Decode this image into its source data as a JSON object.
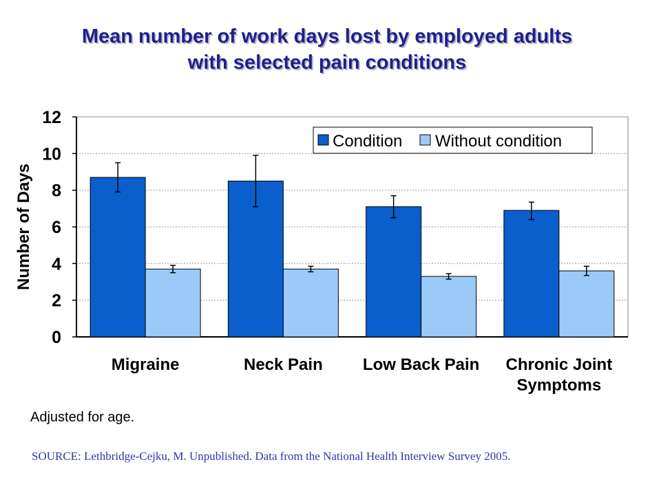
{
  "chart_data": {
    "type": "bar",
    "title_lines": [
      "Mean number of work days lost by employed adults",
      "with selected pain conditions"
    ],
    "ylabel": "Number of Days",
    "ylim": [
      0,
      12
    ],
    "yticks": [
      0,
      2,
      4,
      6,
      8,
      10,
      12
    ],
    "grid": true,
    "legend_position": "top-right",
    "categories": [
      [
        "Migraine"
      ],
      [
        "Neck Pain"
      ],
      [
        "Low Back Pain"
      ],
      [
        "Chronic Joint",
        "Symptoms"
      ]
    ],
    "series": [
      {
        "name": "Condition",
        "color": "#0a5fcc",
        "values": [
          8.7,
          8.5,
          7.1,
          6.9
        ],
        "error_low": [
          7.9,
          7.1,
          6.5,
          6.4
        ],
        "error_high": [
          9.5,
          9.9,
          7.7,
          7.35
        ]
      },
      {
        "name": "Without condition",
        "color": "#9ccaf8",
        "values": [
          3.7,
          3.7,
          3.3,
          3.6
        ],
        "error_low": [
          3.5,
          3.55,
          3.15,
          3.35
        ],
        "error_high": [
          3.9,
          3.85,
          3.45,
          3.85
        ]
      }
    ]
  },
  "footer": {
    "note": "Adjusted for age.",
    "source": "SOURCE: Lethbridge-Cejku, M. Unpublished. Data from the National Health Interview Survey 2005."
  }
}
